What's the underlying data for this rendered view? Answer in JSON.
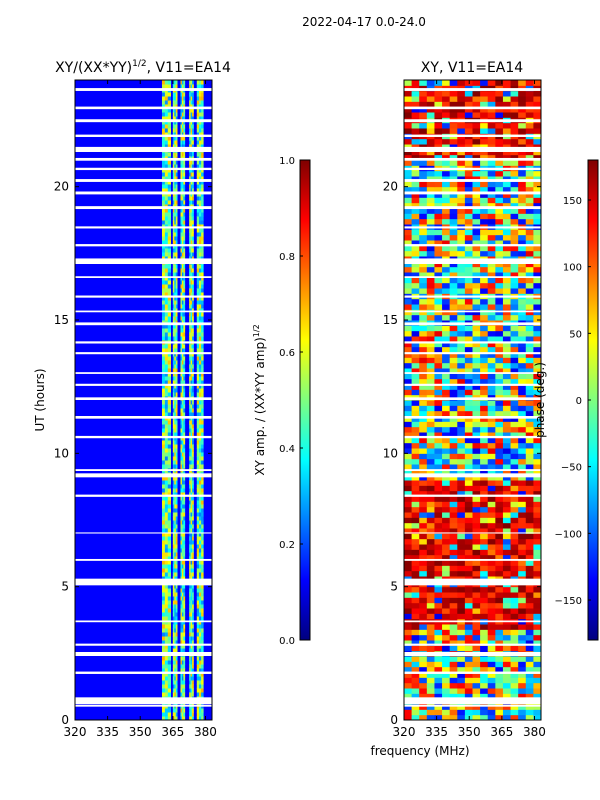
{
  "figure_title": "2022-04-17 0.0-24.0",
  "colors": {
    "jet": [
      "#00007f",
      "#0000ff",
      "#007fff",
      "#00ffff",
      "#7fff7f",
      "#ffff00",
      "#ff7f00",
      "#ff0000",
      "#7f0000"
    ],
    "white": "#ffffff"
  },
  "chart_data": [
    {
      "type": "heatmap",
      "title_main": "XY/(XX*YY)",
      "title_sup": "1/2",
      "title_rest": ", V11=EA14",
      "xlabel": "",
      "ylabel": "UT (hours)",
      "xlim": [
        320,
        383
      ],
      "ylim": [
        0,
        24
      ],
      "xticks": [
        "320",
        "335",
        "350",
        "365",
        "380"
      ],
      "yticks": [
        "0",
        "5",
        "10",
        "15",
        "20"
      ],
      "xtick_values": [
        320,
        335,
        350,
        365,
        380
      ],
      "ytick_values": [
        0,
        5,
        10,
        15,
        20
      ],
      "colorbar": {
        "label_main": "XY amp. / (XX*YY amp)",
        "label_sup": "1/2",
        "range": [
          0,
          1
        ],
        "ticks": [
          "0.0",
          "0.2",
          "0.4",
          "0.6",
          "0.8",
          "1.0"
        ],
        "tick_values": [
          0,
          0.2,
          0.4,
          0.6,
          0.8,
          1.0
        ]
      },
      "bright_channels_mhz": [
        [
          360,
          364
        ],
        [
          365,
          367
        ],
        [
          368.5,
          370.5
        ],
        [
          372.5,
          374.5
        ],
        [
          376,
          379
        ]
      ],
      "blank_gaps_hours": [
        [
          0.6,
          0.85
        ],
        [
          2.4,
          2.55
        ],
        [
          5.05,
          5.3
        ],
        [
          9.1,
          9.25
        ],
        [
          11.3,
          11.4
        ],
        [
          17.1,
          17.3
        ],
        [
          21.3,
          21.45
        ]
      ]
    },
    {
      "type": "heatmap",
      "title": "XY, V11=EA14",
      "xlabel": "frequency (MHz)",
      "ylabel": "",
      "xlim": [
        320,
        383
      ],
      "ylim": [
        0,
        24
      ],
      "xticks": [
        "320",
        "335",
        "350",
        "365",
        "380"
      ],
      "yticks": [
        "0",
        "5",
        "10",
        "15",
        "20"
      ],
      "xtick_values": [
        320,
        335,
        350,
        365,
        380
      ],
      "ytick_values": [
        0,
        5,
        10,
        15,
        20
      ],
      "colorbar": {
        "label": "phase (deg.)",
        "range": [
          -180,
          180
        ],
        "ticks": [
          "−150",
          "−100",
          "−50",
          "0",
          "50",
          "100",
          "150"
        ],
        "tick_values": [
          -150,
          -100,
          -50,
          0,
          50,
          100,
          150
        ]
      },
      "red_band_hours": [
        [
          3.5,
          9.0
        ],
        [
          21.0,
          24.0
        ]
      ],
      "blank_gaps_hours": [
        [
          0.6,
          0.85
        ],
        [
          2.4,
          2.55
        ],
        [
          5.05,
          5.3
        ],
        [
          9.1,
          9.25
        ],
        [
          11.3,
          11.4
        ],
        [
          17.1,
          17.3
        ],
        [
          21.3,
          21.45
        ]
      ]
    }
  ]
}
